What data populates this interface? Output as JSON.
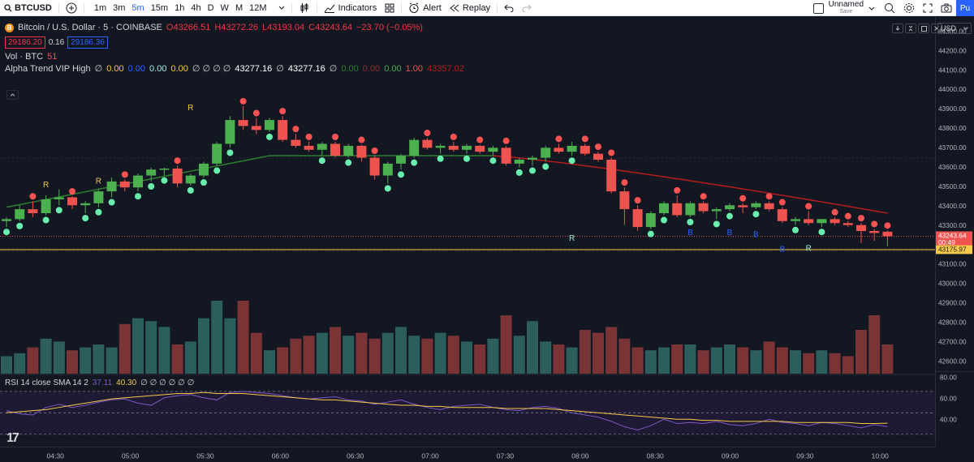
{
  "toolbar": {
    "symbol": "BTCUSD",
    "timeframes": [
      "1m",
      "3m",
      "5m",
      "15m",
      "1h",
      "4h",
      "D",
      "W",
      "M",
      "12M"
    ],
    "active_timeframe": "5m",
    "indicators_label": "Indicators",
    "alert_label": "Alert",
    "replay_label": "Replay",
    "layout_name": "Unnamed",
    "layout_save": "Save",
    "publish_label": "Pu"
  },
  "legend": {
    "title": "Bitcoin / U.S. Dollar · 5 · COINBASE",
    "open": "O43266.51",
    "high": "H43272.26",
    "low": "L43193.04",
    "close": "C43243.64",
    "change": "−23.70 (−0.05%)",
    "bid": "29186.20",
    "spread": "0.16",
    "ask": "29186.36",
    "vol_label": "Vol · BTC",
    "vol_value": "51",
    "alpha_label": "Alpha Trend VIP High",
    "alpha_values": [
      {
        "text": "∅",
        "color": "#d1d4dc"
      },
      {
        "text": "0.00",
        "color": "#f7c948"
      },
      {
        "text": "0.00",
        "color": "#2962ff"
      },
      {
        "text": "0.00",
        "color": "#9ef0e0"
      },
      {
        "text": "0.00",
        "color": "#f7c948"
      },
      {
        "text": "∅ ∅ ∅ ∅",
        "color": "#d1d4dc"
      },
      {
        "text": "43277.16",
        "color": "#ffffff"
      },
      {
        "text": "∅",
        "color": "#d1d4dc"
      },
      {
        "text": "43277.16",
        "color": "#ffffff"
      },
      {
        "text": "∅",
        "color": "#d1d4dc"
      },
      {
        "text": "0.00",
        "color": "#2e7d32"
      },
      {
        "text": "0.00",
        "color": "#8e2d2d"
      },
      {
        "text": "0.00",
        "color": "#4caf50"
      },
      {
        "text": "1.00",
        "color": "#ef5350"
      },
      {
        "text": "43357.02",
        "color": "#b71c1c"
      }
    ]
  },
  "currency": "USD",
  "price_axis": {
    "ticks": [
      "44300.00",
      "44200.00",
      "44100.00",
      "44000.00",
      "43900.00",
      "43800.00",
      "43700.00",
      "43600.00",
      "43500.00",
      "43400.00",
      "43300.00",
      "43100.00",
      "43000.00",
      "42900.00",
      "42800.00",
      "42700.00",
      "42600.00"
    ],
    "current_price": "43243.64",
    "countdown": "00:49",
    "line_price": "43175.97",
    "rsi_ticks": [
      "80.00",
      "60.00",
      "40.00"
    ]
  },
  "time_axis": [
    "04:30",
    "05:00",
    "05:30",
    "06:00",
    "06:30",
    "07:00",
    "07:30",
    "08:00",
    "08:30",
    "09:00",
    "09:30",
    "10:00"
  ],
  "rsi": {
    "label": "RSI 14 close SMA 14 2",
    "rsi_value": "37.11",
    "sma_value": "40.30",
    "extra": "∅ ∅ ∅ ∅ ∅ ∅"
  },
  "signals": [
    {
      "text": "R",
      "color": "#f7c948"
    },
    {
      "text": "R",
      "color": "#f7c948"
    },
    {
      "text": "R",
      "color": "#f7c948"
    },
    {
      "text": "R",
      "color": "#9ef0e0"
    },
    {
      "text": "B",
      "color": "#2962ff"
    },
    {
      "text": "B",
      "color": "#2962ff"
    },
    {
      "text": "B",
      "color": "#2962ff"
    },
    {
      "text": "B",
      "color": "#2962ff"
    },
    {
      "text": "R",
      "color": "#9ef0e0"
    }
  ],
  "colors": {
    "up": "#4caf50",
    "down": "#ef5350",
    "trend_up": "#2e7d32",
    "trend_down": "#b71c1c",
    "rsi_line": "#7e57c2",
    "rsi_sma": "#f7c948"
  },
  "chart_data": {
    "type": "candlestick",
    "interval": "5m",
    "candles_ohlc": [
      [
        43320,
        43340,
        43290,
        43330
      ],
      [
        43330,
        43400,
        43320,
        43380
      ],
      [
        43380,
        43420,
        43340,
        43360
      ],
      [
        43360,
        43450,
        43350,
        43430
      ],
      [
        43430,
        43480,
        43400,
        43440
      ],
      [
        43440,
        43445,
        43380,
        43400
      ],
      [
        43400,
        43420,
        43360,
        43410
      ],
      [
        43410,
        43480,
        43390,
        43470
      ],
      [
        43470,
        43540,
        43440,
        43520
      ],
      [
        43520,
        43530,
        43470,
        43490
      ],
      [
        43490,
        43560,
        43470,
        43550
      ],
      [
        43550,
        43590,
        43520,
        43580
      ],
      [
        43580,
        43590,
        43550,
        43585
      ],
      [
        43585,
        43600,
        43490,
        43510
      ],
      [
        43510,
        43560,
        43500,
        43550
      ],
      [
        43550,
        43620,
        43540,
        43610
      ],
      [
        43610,
        43720,
        43600,
        43710
      ],
      [
        43710,
        43850,
        43690,
        43830
      ],
      [
        43830,
        43900,
        43780,
        43800
      ],
      [
        43800,
        43840,
        43760,
        43780
      ],
      [
        43780,
        43840,
        43770,
        43830
      ],
      [
        43830,
        43850,
        43720,
        43730
      ],
      [
        43730,
        43760,
        43690,
        43700
      ],
      [
        43700,
        43720,
        43670,
        43680
      ],
      [
        43680,
        43720,
        43650,
        43710
      ],
      [
        43710,
        43720,
        43640,
        43650
      ],
      [
        43650,
        43710,
        43640,
        43700
      ],
      [
        43700,
        43705,
        43620,
        43640
      ],
      [
        43640,
        43650,
        43530,
        43550
      ],
      [
        43550,
        43620,
        43510,
        43610
      ],
      [
        43610,
        43660,
        43580,
        43650
      ],
      [
        43650,
        43740,
        43640,
        43730
      ],
      [
        43730,
        43740,
        43680,
        43690
      ],
      [
        43690,
        43710,
        43660,
        43700
      ],
      [
        43700,
        43720,
        43670,
        43680
      ],
      [
        43680,
        43710,
        43660,
        43700
      ],
      [
        43700,
        43705,
        43660,
        43670
      ],
      [
        43670,
        43700,
        43650,
        43690
      ],
      [
        43690,
        43700,
        43600,
        43610
      ],
      [
        43610,
        43640,
        43590,
        43630
      ],
      [
        43630,
        43650,
        43600,
        43640
      ],
      [
        43640,
        43700,
        43620,
        43690
      ],
      [
        43690,
        43710,
        43660,
        43670
      ],
      [
        43670,
        43720,
        43650,
        43700
      ],
      [
        43700,
        43710,
        43650,
        43660
      ],
      [
        43660,
        43670,
        43620,
        43630
      ],
      [
        43630,
        43640,
        43460,
        43470
      ],
      [
        43470,
        43490,
        43300,
        43380
      ],
      [
        43380,
        43400,
        43270,
        43290
      ],
      [
        43290,
        43370,
        43280,
        43360
      ],
      [
        43360,
        43420,
        43350,
        43410
      ],
      [
        43410,
        43450,
        43340,
        43350
      ],
      [
        43350,
        43420,
        43340,
        43410
      ],
      [
        43410,
        43420,
        43360,
        43370
      ],
      [
        43370,
        43390,
        43330,
        43380
      ],
      [
        43380,
        43410,
        43370,
        43400
      ],
      [
        43400,
        43410,
        43360,
        43390
      ],
      [
        43390,
        43420,
        43380,
        43410
      ],
      [
        43410,
        43420,
        43370,
        43380
      ],
      [
        43380,
        43390,
        43310,
        43320
      ],
      [
        43320,
        43340,
        43300,
        43330
      ],
      [
        43330,
        43370,
        43300,
        43310
      ],
      [
        43310,
        43320,
        43290,
        43330
      ],
      [
        43330,
        43340,
        43300,
        43310
      ],
      [
        43310,
        43320,
        43290,
        43300
      ],
      [
        43300,
        43310,
        43210,
        43270
      ],
      [
        43270,
        43280,
        43220,
        43260
      ],
      [
        43266.51,
        43272.26,
        43193.04,
        43243.64
      ]
    ],
    "volume": [
      0.6,
      0.7,
      0.9,
      1.2,
      1.1,
      0.8,
      0.9,
      1.0,
      0.9,
      1.7,
      1.9,
      1.8,
      1.6,
      1.0,
      1.1,
      1.9,
      2.5,
      1.9,
      2.5,
      1.4,
      0.8,
      0.9,
      1.2,
      1.3,
      1.4,
      1.6,
      1.3,
      1.4,
      1.2,
      1.4,
      1.6,
      1.3,
      1.2,
      1.4,
      1.3,
      1.1,
      1.0,
      1.2,
      2.0,
      1.3,
      1.8,
      1.1,
      1.0,
      0.9,
      1.5,
      1.4,
      1.6,
      1.2,
      0.9,
      0.8,
      0.9,
      1.0,
      1.0,
      0.8,
      0.9,
      1.0,
      0.9,
      0.8,
      1.1,
      0.9,
      0.8,
      0.7,
      0.8,
      0.7,
      0.6,
      1.5,
      2.0,
      1.0
    ],
    "trend_line": {
      "up_until_index": 37,
      "values_start": 43390,
      "peak": 43650,
      "end": 43360
    },
    "rsi": [
      52,
      49,
      48,
      55,
      58,
      55,
      57,
      60,
      62,
      63,
      59,
      57,
      64,
      66,
      67,
      64,
      62,
      69,
      70,
      69,
      68,
      66,
      64,
      63,
      64,
      65,
      62,
      61,
      58,
      60,
      62,
      58,
      55,
      53,
      56,
      57,
      58,
      55,
      53,
      52,
      55,
      56,
      54,
      50,
      48,
      46,
      42,
      37,
      34,
      38,
      44,
      40,
      41,
      40,
      42,
      39,
      38,
      40,
      44,
      41,
      40,
      38,
      41,
      40,
      38,
      36,
      39,
      37
    ],
    "rsi_sma": [
      50,
      51,
      52,
      53,
      55,
      57,
      59,
      61,
      63,
      64,
      65,
      66,
      67,
      68,
      68,
      69,
      68,
      68,
      68,
      67,
      66,
      65,
      64,
      63,
      62,
      62,
      61,
      60,
      59,
      58,
      57,
      57,
      56,
      56,
      55,
      55,
      55,
      55,
      54,
      54,
      54,
      54,
      53,
      52,
      51,
      50,
      49,
      48,
      47,
      46,
      45,
      44,
      44,
      43,
      43,
      42,
      42,
      42,
      42,
      42,
      41,
      41,
      41,
      41,
      41,
      40,
      40,
      40.3
    ],
    "rsi_range": [
      20,
      85
    ],
    "y_range": [
      42550,
      44350
    ]
  }
}
